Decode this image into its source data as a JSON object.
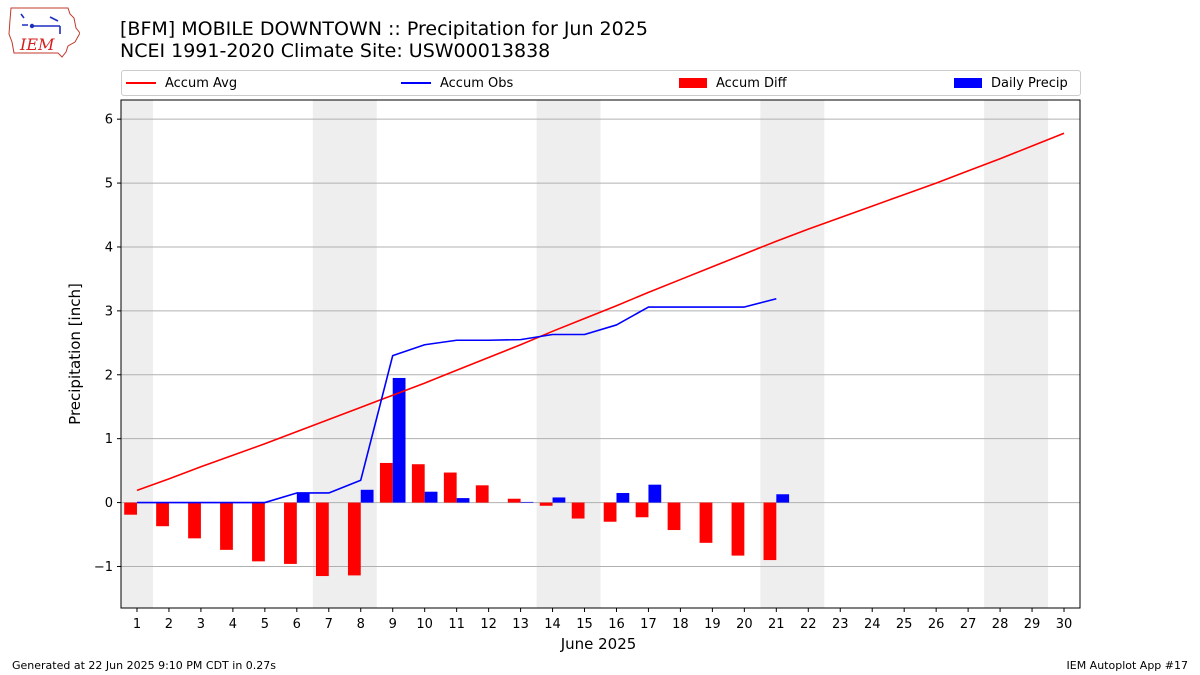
{
  "header": {
    "title_line1": "[BFM] MOBILE DOWNTOWN :: Precipitation for Jun 2025",
    "title_line2": "NCEI 1991-2020 Climate Site: USW00013838",
    "logo_text": "IEM"
  },
  "footer": {
    "left": "Generated at 22 Jun 2025 9:10 PM CDT in 0.27s",
    "right": "IEM Autoplot App #17"
  },
  "legend": {
    "accum_avg": "Accum Avg",
    "accum_obs": "Accum Obs",
    "accum_diff": "Accum Diff",
    "daily_precip": "Daily Precip"
  },
  "colors": {
    "avg": "#ff0000",
    "obs": "#0000ff",
    "diff": "#ff0000",
    "daily": "#0000ff",
    "weekend_shade": "#eeeeee",
    "grid": "#b0b0b0"
  },
  "chart_data": {
    "type": "bar",
    "xlabel": "June 2025",
    "ylabel": "Precipitation [inch]",
    "xlim": [
      0.5,
      30.5
    ],
    "ylim": [
      -1.65,
      6.3
    ],
    "y_ticks": [
      -1,
      0,
      1,
      2,
      3,
      4,
      5,
      6
    ],
    "y_tick_labels": [
      "−1",
      "0",
      "1",
      "2",
      "3",
      "4",
      "5",
      "6"
    ],
    "x_ticks": [
      1,
      2,
      3,
      4,
      5,
      6,
      7,
      8,
      9,
      10,
      11,
      12,
      13,
      14,
      15,
      16,
      17,
      18,
      19,
      20,
      21,
      22,
      23,
      24,
      25,
      26,
      27,
      28,
      29,
      30
    ],
    "grid": "horizontal",
    "legend_position": "top",
    "weekend_shading": [
      [
        0.5,
        1.5
      ],
      [
        6.5,
        8.5
      ],
      [
        13.5,
        15.5
      ],
      [
        20.5,
        22.5
      ],
      [
        27.5,
        29.5
      ]
    ],
    "days": [
      1,
      2,
      3,
      4,
      5,
      6,
      7,
      8,
      9,
      10,
      11,
      12,
      13,
      14,
      15,
      16,
      17,
      18,
      19,
      20,
      21,
      22,
      23,
      24,
      25,
      26,
      27,
      28,
      29,
      30
    ],
    "series": [
      {
        "name": "Accum Avg",
        "kind": "line",
        "values": [
          0.19,
          0.37,
          0.56,
          0.74,
          0.92,
          1.11,
          1.3,
          1.49,
          1.68,
          1.87,
          2.07,
          2.27,
          2.47,
          2.68,
          2.88,
          3.08,
          3.29,
          3.49,
          3.69,
          3.89,
          4.09,
          4.28,
          4.46,
          4.64,
          4.82,
          5.0,
          5.19,
          5.38,
          5.58,
          5.78
        ]
      },
      {
        "name": "Accum Obs",
        "kind": "line",
        "values": [
          0.0,
          0.0,
          0.0,
          0.0,
          0.0,
          0.15,
          0.15,
          0.35,
          2.3,
          2.47,
          2.54,
          2.54,
          2.55,
          2.63,
          2.63,
          2.78,
          3.06,
          3.06,
          3.06,
          3.06,
          3.19
        ]
      },
      {
        "name": "Accum Diff",
        "kind": "bar",
        "values": [
          -0.19,
          -0.37,
          -0.56,
          -0.74,
          -0.92,
          -0.96,
          -1.15,
          -1.14,
          0.62,
          0.6,
          0.47,
          0.27,
          0.06,
          -0.05,
          -0.25,
          -0.3,
          -0.23,
          -0.43,
          -0.63,
          -0.83,
          -0.9
        ]
      },
      {
        "name": "Daily Precip",
        "kind": "bar",
        "values": [
          0.0,
          0.0,
          0.0,
          0.0,
          0.0,
          0.15,
          0.0,
          0.2,
          1.95,
          0.17,
          0.07,
          0.0,
          0.01,
          0.08,
          0.0,
          0.15,
          0.28,
          0.0,
          0.0,
          0.0,
          0.13
        ]
      }
    ]
  }
}
